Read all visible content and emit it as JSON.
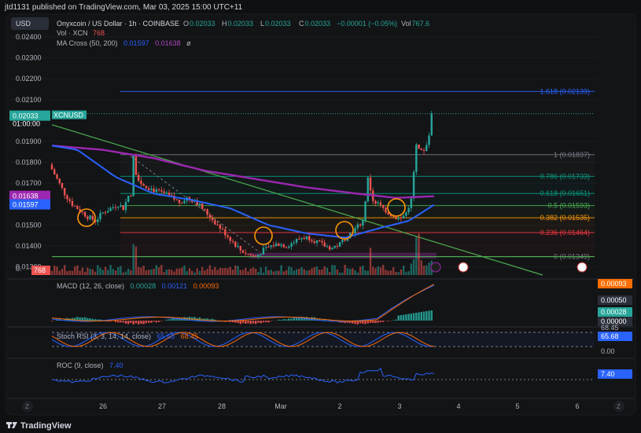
{
  "publish_line": "jtd1131 published on TradingView.com, Mar 03, 2025 15:00 UTC+11",
  "currency_button": "USD",
  "legend": {
    "symbol": "Onyxcoin / US Dollar · 1h · COINBASE",
    "ohlc": [
      {
        "k": "O",
        "v": "0.02033"
      },
      {
        "k": "H",
        "v": "0.02033"
      },
      {
        "k": "L",
        "v": "0.02033"
      },
      {
        "k": "C",
        "v": "0.02033"
      }
    ],
    "change": "−0.00001 (−0.05%)",
    "vol_label": "Vol",
    "vol_value": "767.6",
    "vol_xcn_label": "Vol · XCN",
    "vol_xcn_value": "768",
    "ma_label": "MA Cross (50, 200)",
    "ma_fast": "0.01597",
    "ma_slow": "0.01638",
    "eye_glyph": "ø"
  },
  "price_axis": {
    "ticks": [
      "0.02400",
      "0.02300",
      "0.02200",
      "0.02100",
      "0.01900",
      "0.01800",
      "0.01700",
      "0.01500",
      "0.01400",
      "0.01300"
    ],
    "partial_tick": "0.",
    "current_price": "0.02033",
    "current_time": "01:00:00",
    "symbol_tag": "XCNUSD",
    "ma_slow_tag": "0.01638",
    "ma_fast_tag": "0.01597",
    "volume_tag": "768"
  },
  "fib_levels": [
    {
      "label": "1.618 (0.02139)",
      "color": "#2962ff"
    },
    {
      "label": "1 (0.01837)",
      "color": "#787b86"
    },
    {
      "label": "0.786 (0.01733)",
      "color": "#089981"
    },
    {
      "label": "0.618 (0.01651)",
      "color": "#089981"
    },
    {
      "label": "0.5 (0.01593)",
      "color": "#4caf50"
    },
    {
      "label": "0.382 (0.01535)",
      "color": "#ff9800"
    },
    {
      "label": "0.236 (0.01464)",
      "color": "#f23645"
    },
    {
      "label": "0 (0.01349)",
      "color": "#787b86"
    }
  ],
  "macd": {
    "label": "MACD (12, 26, close)",
    "v1": "0.00028",
    "v2": "0.00121",
    "v3": "0.00093",
    "axis": [
      "0.00093",
      "0.00050",
      "0.00028",
      "0.00000"
    ],
    "top_partial": "0.00"
  },
  "stoch": {
    "label": "Stoch RSI (3, 3, 14, 14, close)",
    "v1": "65.68",
    "v2": "68.45",
    "axis": [
      "65.68",
      "0.00"
    ],
    "top_partial": "68.45"
  },
  "roc": {
    "label": "ROC (9, close)",
    "v1": "7.40",
    "axis": [
      "7.40"
    ]
  },
  "time_axis": [
    "26",
    "27",
    "28",
    "Mar",
    "2",
    "3",
    "4",
    "5",
    "6"
  ],
  "time_buttons": {
    "left": "Z",
    "right": "Z"
  },
  "brand": "TradingView",
  "colors": {
    "background": "#0f1012",
    "up": "#26a69a",
    "down": "#ef5350",
    "ma_fast": "#2962ff",
    "ma_slow": "#9c27b0",
    "trendline": "#4caf50",
    "circle": "#ff9800",
    "macd_line": "#2962ff",
    "signal_line": "#ff6d00",
    "stoch_k": "#2962ff",
    "stoch_d": "#ff6d00",
    "roc": "#2962ff"
  },
  "chart_data": {
    "type": "candlestick",
    "title": "Onyxcoin / US Dollar · 1h · COINBASE",
    "x_ticks": [
      "26",
      "27",
      "28",
      "Mar",
      "2",
      "3",
      "4",
      "5",
      "6"
    ],
    "ylim": [
      0.0128,
      0.0245
    ],
    "price_path": [
      [
        0,
        0.0179
      ],
      [
        6,
        0.0172
      ],
      [
        12,
        0.0165
      ],
      [
        18,
        0.016
      ],
      [
        24,
        0.0157
      ],
      [
        30,
        0.0154
      ],
      [
        36,
        0.0152
      ],
      [
        42,
        0.0156
      ],
      [
        48,
        0.0158
      ],
      [
        54,
        0.016
      ],
      [
        58,
        0.0158
      ],
      [
        62,
        0.0164
      ],
      [
        64,
        0.0165
      ],
      [
        66,
        0.0183
      ],
      [
        68,
        0.0175
      ],
      [
        72,
        0.017
      ],
      [
        78,
        0.0168
      ],
      [
        84,
        0.0166
      ],
      [
        90,
        0.0165
      ],
      [
        96,
        0.0163
      ],
      [
        102,
        0.0161
      ],
      [
        108,
        0.0163
      ],
      [
        114,
        0.0162
      ],
      [
        120,
        0.0158
      ],
      [
        126,
        0.0154
      ],
      [
        132,
        0.015
      ],
      [
        138,
        0.0146
      ],
      [
        144,
        0.0142
      ],
      [
        150,
        0.0138
      ],
      [
        156,
        0.0136
      ],
      [
        162,
        0.0135
      ],
      [
        168,
        0.0138
      ],
      [
        174,
        0.014
      ],
      [
        180,
        0.0141
      ],
      [
        186,
        0.014
      ],
      [
        192,
        0.0142
      ],
      [
        198,
        0.0144
      ],
      [
        204,
        0.0144
      ],
      [
        210,
        0.0142
      ],
      [
        216,
        0.014
      ],
      [
        222,
        0.0139
      ],
      [
        228,
        0.0141
      ],
      [
        234,
        0.0145
      ],
      [
        240,
        0.0148
      ],
      [
        246,
        0.0152
      ],
      [
        250,
        0.0172
      ],
      [
        254,
        0.0162
      ],
      [
        258,
        0.016
      ],
      [
        262,
        0.0158
      ],
      [
        266,
        0.0156
      ],
      [
        270,
        0.0154
      ],
      [
        276,
        0.0153
      ],
      [
        280,
        0.0156
      ],
      [
        284,
        0.0162
      ],
      [
        286,
        0.0175
      ],
      [
        288,
        0.0188
      ],
      [
        291,
        0.0184
      ],
      [
        294,
        0.0186
      ],
      [
        298,
        0.0192
      ],
      [
        300,
        0.02033
      ]
    ],
    "ma_fast_path": [
      [
        0,
        0.0188
      ],
      [
        20,
        0.0186
      ],
      [
        50,
        0.0173
      ],
      [
        80,
        0.0165
      ],
      [
        110,
        0.0162
      ],
      [
        140,
        0.0158
      ],
      [
        170,
        0.015
      ],
      [
        200,
        0.0146
      ],
      [
        230,
        0.0144
      ],
      [
        260,
        0.0149
      ],
      [
        280,
        0.0152
      ],
      [
        300,
        0.01597
      ]
    ],
    "ma_slow_path": [
      [
        0,
        0.0188
      ],
      [
        40,
        0.0186
      ],
      [
        80,
        0.0182
      ],
      [
        120,
        0.0176
      ],
      [
        160,
        0.0172
      ],
      [
        200,
        0.0168
      ],
      [
        240,
        0.0165
      ],
      [
        270,
        0.0163
      ],
      [
        300,
        0.01638
      ]
    ],
    "series": [
      {
        "name": "MA Cross 50",
        "last": 0.01597
      },
      {
        "name": "MA Cross 200",
        "last": 0.01638
      }
    ]
  }
}
